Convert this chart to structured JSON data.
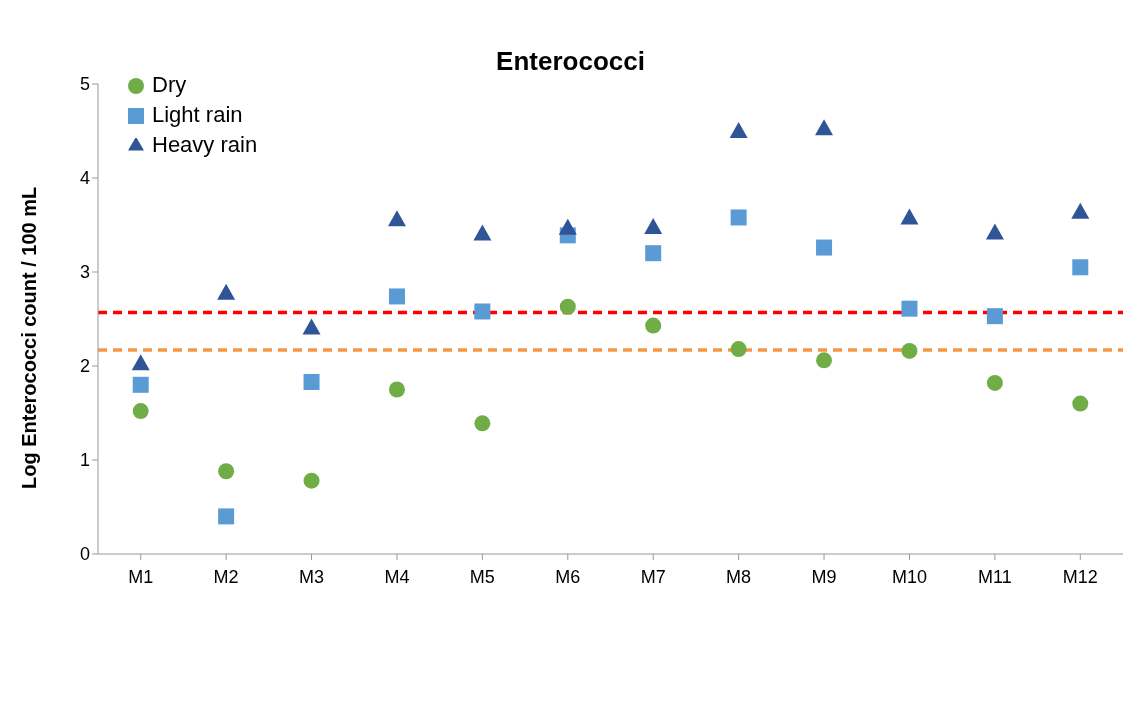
{
  "chart_data": {
    "type": "scatter",
    "title": "Enterococci",
    "ylabel": "Log  Enterococci count / 100 mL",
    "categories": [
      "M1",
      "M2",
      "M3",
      "M4",
      "M5",
      "M6",
      "M7",
      "M8",
      "M9",
      "M10",
      "M11",
      "M12"
    ],
    "series": [
      {
        "name": "Dry",
        "color": "#70ad47",
        "marker": "circle",
        "values": [
          1.52,
          0.88,
          0.78,
          1.75,
          1.39,
          2.63,
          2.43,
          2.18,
          2.06,
          2.16,
          1.82,
          1.6
        ]
      },
      {
        "name": "Light rain",
        "color": "#5b9bd5",
        "marker": "square",
        "values": [
          1.8,
          0.4,
          1.83,
          2.74,
          2.58,
          3.39,
          3.2,
          3.58,
          3.26,
          2.61,
          2.53,
          3.05
        ]
      },
      {
        "name": "Heavy rain",
        "color": "#2f5597",
        "marker": "triangle",
        "values": [
          2.03,
          2.78,
          2.41,
          3.56,
          3.41,
          3.47,
          3.48,
          4.5,
          4.53,
          3.58,
          3.42,
          3.64
        ]
      }
    ],
    "ylim": [
      0,
      5
    ],
    "yticks": [
      0,
      1,
      2,
      3,
      4,
      5
    ],
    "legend": "top left",
    "ref_lines": [
      {
        "axis": "y",
        "value": 2.57,
        "color": "#ff0000",
        "line_style": "dashed"
      },
      {
        "axis": "y",
        "value": 2.17,
        "color": "#f79646",
        "line_style": "dashed"
      }
    ]
  }
}
